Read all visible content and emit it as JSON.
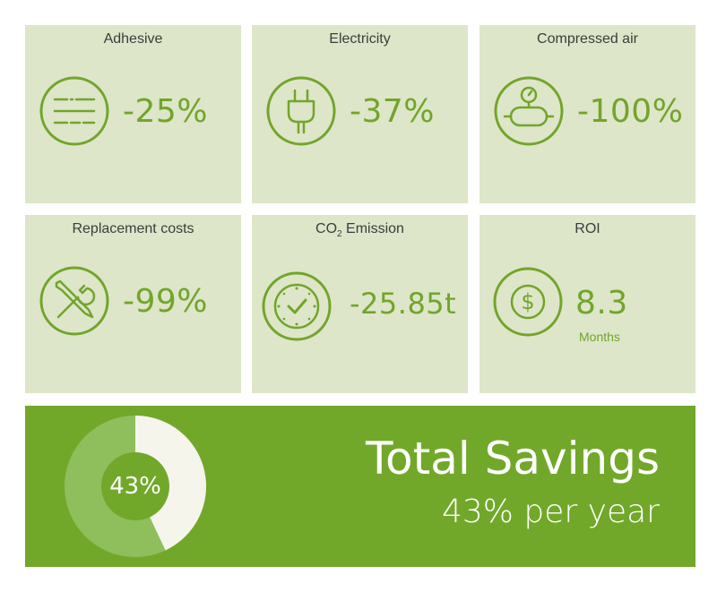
{
  "cards": [
    {
      "label": "Adhesive",
      "value": "-25%",
      "icon": "adhesive-lines-icon"
    },
    {
      "label": "Electricity",
      "value": "-37%",
      "icon": "plug-icon"
    },
    {
      "label": "Compressed air",
      "value": "-100%",
      "icon": "pressure-tank-icon"
    },
    {
      "label": "Replacement costs",
      "value": "-99%",
      "icon": "wrench-screwdriver-icon"
    },
    {
      "label_main": "CO",
      "label_sub": "2",
      "label_rest": " Emission",
      "value": "-25.85t",
      "icon": "clock-check-icon"
    },
    {
      "label": "ROI",
      "value": "8.3",
      "unit": "Months",
      "icon": "dollar-coin-icon"
    }
  ],
  "total": {
    "title": "Total Savings",
    "subtitle": "43% per year",
    "donut_label": "43%",
    "percent": 43
  },
  "colors": {
    "accent": "#72a52b",
    "card_bg": "#dde6c8",
    "banner_bg": "#72a82a",
    "donut_light": "#8fbf5c",
    "donut_cream": "#f5f5ec"
  }
}
